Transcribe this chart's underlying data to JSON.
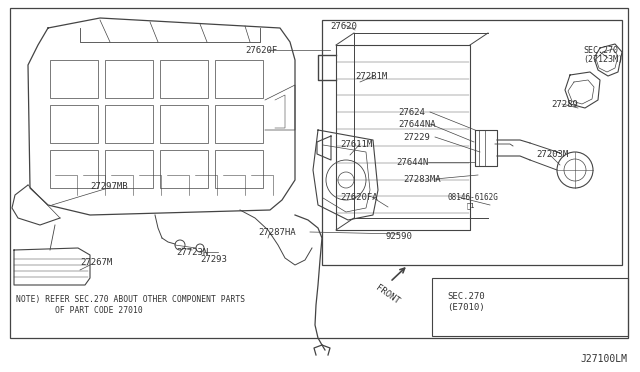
{
  "bg_color": "#ffffff",
  "border_color": "#555555",
  "line_color": "#444444",
  "text_color": "#333333",
  "title_diagram_number": "J27100LM",
  "note_line1": "NOTE) REFER SEC.270 ABOUT OTHER COMPONENT PARTS",
  "note_line2": "        OF PART CODE 27010",
  "figsize": [
    6.4,
    3.72
  ],
  "dpi": 100
}
